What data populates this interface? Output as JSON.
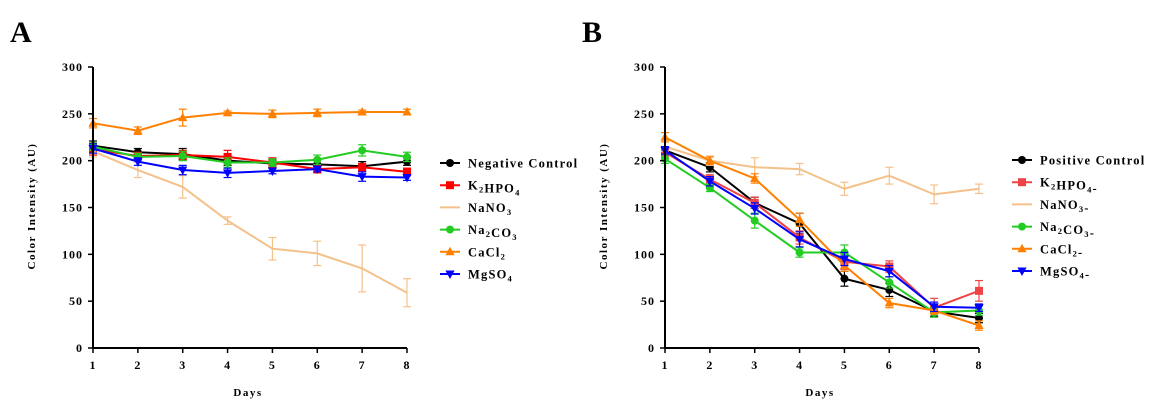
{
  "chart_data": [
    {
      "panel": "A",
      "type": "line",
      "xlabel": "Days",
      "ylabel": "Color Intensity (AU)",
      "xlim": [
        1,
        8
      ],
      "ylim": [
        0,
        300
      ],
      "x_ticks": [
        1,
        2,
        3,
        4,
        5,
        6,
        7,
        8
      ],
      "y_ticks": [
        0,
        50,
        100,
        150,
        200,
        250,
        300
      ],
      "x": [
        1,
        2,
        3,
        4,
        5,
        6,
        7,
        8
      ],
      "grid": false,
      "legend_position": "right",
      "series": [
        {
          "name": "Negative Control",
          "name_parts": [
            [
              "Negative Control",
              ""
            ]
          ],
          "color": "#000000",
          "marker": "circle",
          "values": [
            216,
            209,
            207,
            200,
            197,
            196,
            194,
            199
          ],
          "errors": [
            5,
            4,
            6,
            5,
            4,
            5,
            5,
            4
          ]
        },
        {
          "name": "K2HPO4",
          "name_parts": [
            [
              "K",
              ""
            ],
            [
              "2",
              "sub"
            ],
            [
              "HPO",
              ""
            ],
            [
              "4",
              "sub"
            ]
          ],
          "color": "#ff0000",
          "marker": "square",
          "values": [
            212,
            205,
            206,
            204,
            198,
            191,
            193,
            188
          ],
          "errors": [
            6,
            4,
            5,
            7,
            5,
            4,
            4,
            4
          ]
        },
        {
          "name": "NaNO3",
          "name_parts": [
            [
              "NaNO",
              ""
            ],
            [
              "3",
              "sub"
            ]
          ],
          "color": "#f5c18b",
          "marker": "none",
          "values": [
            210,
            190,
            172,
            136,
            106,
            101,
            85,
            59
          ],
          "errors": [
            6,
            8,
            12,
            4,
            12,
            13,
            25,
            15
          ]
        },
        {
          "name": "Na2CO3",
          "name_parts": [
            [
              "Na",
              ""
            ],
            [
              "2",
              "sub"
            ],
            [
              "CO",
              ""
            ],
            [
              "3",
              "sub"
            ]
          ],
          "color": "#22cc22",
          "marker": "circle",
          "values": [
            215,
            204,
            205,
            198,
            198,
            201,
            211,
            204
          ],
          "errors": [
            4,
            4,
            5,
            5,
            4,
            5,
            6,
            5
          ]
        },
        {
          "name": "CaCl2",
          "name_parts": [
            [
              "CaCl",
              ""
            ],
            [
              "2",
              "sub"
            ]
          ],
          "color": "#ff8000",
          "marker": "triangle-up",
          "values": [
            240,
            232,
            246,
            251,
            250,
            251,
            252,
            252
          ],
          "errors": [
            5,
            4,
            9,
            2,
            4,
            4,
            2,
            3
          ]
        },
        {
          "name": "MgSO4",
          "name_parts": [
            [
              "MgSO",
              ""
            ],
            [
              "4",
              "sub"
            ]
          ],
          "color": "#0000ff",
          "marker": "triangle-down",
          "values": [
            213,
            199,
            190,
            187,
            189,
            191,
            183,
            182
          ],
          "errors": [
            5,
            4,
            5,
            5,
            3,
            3,
            5,
            3
          ]
        }
      ]
    },
    {
      "panel": "B",
      "type": "line",
      "xlabel": "Days",
      "ylabel": "Color Intensity (AU)",
      "xlim": [
        1,
        8
      ],
      "ylim": [
        0,
        300
      ],
      "x_ticks": [
        1,
        2,
        3,
        4,
        5,
        6,
        7,
        8
      ],
      "y_ticks": [
        0,
        50,
        100,
        150,
        200,
        250,
        300
      ],
      "x": [
        1,
        2,
        3,
        4,
        5,
        6,
        7,
        8
      ],
      "grid": false,
      "legend_position": "right",
      "series": [
        {
          "name": "Positive Control",
          "name_parts": [
            [
              "Positive Control",
              ""
            ]
          ],
          "color": "#000000",
          "marker": "circle",
          "values": [
            211,
            193,
            155,
            133,
            74,
            62,
            39,
            32
          ],
          "errors": [
            4,
            5,
            6,
            11,
            8,
            7,
            5,
            5
          ]
        },
        {
          "name": "K2HPO4-",
          "name_parts": [
            [
              "K",
              ""
            ],
            [
              "2",
              "sub"
            ],
            [
              "HPO",
              ""
            ],
            [
              "4",
              "sub"
            ],
            [
              "-",
              ""
            ]
          ],
          "color": "#ee4444",
          "marker": "square",
          "values": [
            209,
            180,
            155,
            118,
            92,
            87,
            43,
            61
          ],
          "errors": [
            5,
            5,
            6,
            7,
            8,
            6,
            10,
            11
          ]
        },
        {
          "name": "NaNO3-",
          "name_parts": [
            [
              "NaNO",
              ""
            ],
            [
              "3",
              "sub"
            ],
            [
              "-",
              ""
            ]
          ],
          "color": "#f5c18b",
          "marker": "none",
          "values": [
            215,
            200,
            193,
            191,
            170,
            184,
            164,
            170
          ],
          "errors": [
            5,
            5,
            10,
            6,
            7,
            9,
            10,
            5
          ]
        },
        {
          "name": "Na2CO3-",
          "name_parts": [
            [
              "Na",
              ""
            ],
            [
              "2",
              "sub"
            ],
            [
              "CO",
              ""
            ],
            [
              "3",
              "sub"
            ],
            [
              "-",
              ""
            ]
          ],
          "color": "#22cc22",
          "marker": "circle",
          "values": [
            202,
            171,
            136,
            102,
            102,
            70,
            38,
            40
          ],
          "errors": [
            5,
            4,
            8,
            5,
            8,
            6,
            5,
            5
          ]
        },
        {
          "name": "CaCl2-",
          "name_parts": [
            [
              "CaCl",
              ""
            ],
            [
              "2",
              "sub"
            ],
            [
              "-",
              ""
            ]
          ],
          "color": "#ff8000",
          "marker": "triangle-up",
          "values": [
            225,
            200,
            181,
            137,
            88,
            48,
            40,
            24
          ],
          "errors": [
            5,
            4,
            5,
            7,
            6,
            5,
            4,
            5
          ]
        },
        {
          "name": "MgSO4-",
          "name_parts": [
            [
              "MgSO",
              ""
            ],
            [
              "4",
              "sub"
            ],
            [
              "-",
              ""
            ]
          ],
          "color": "#0000ff",
          "marker": "triangle-down",
          "values": [
            211,
            178,
            149,
            116,
            95,
            82,
            44,
            43
          ],
          "errors": [
            4,
            5,
            6,
            8,
            7,
            6,
            5,
            4
          ]
        }
      ]
    }
  ]
}
